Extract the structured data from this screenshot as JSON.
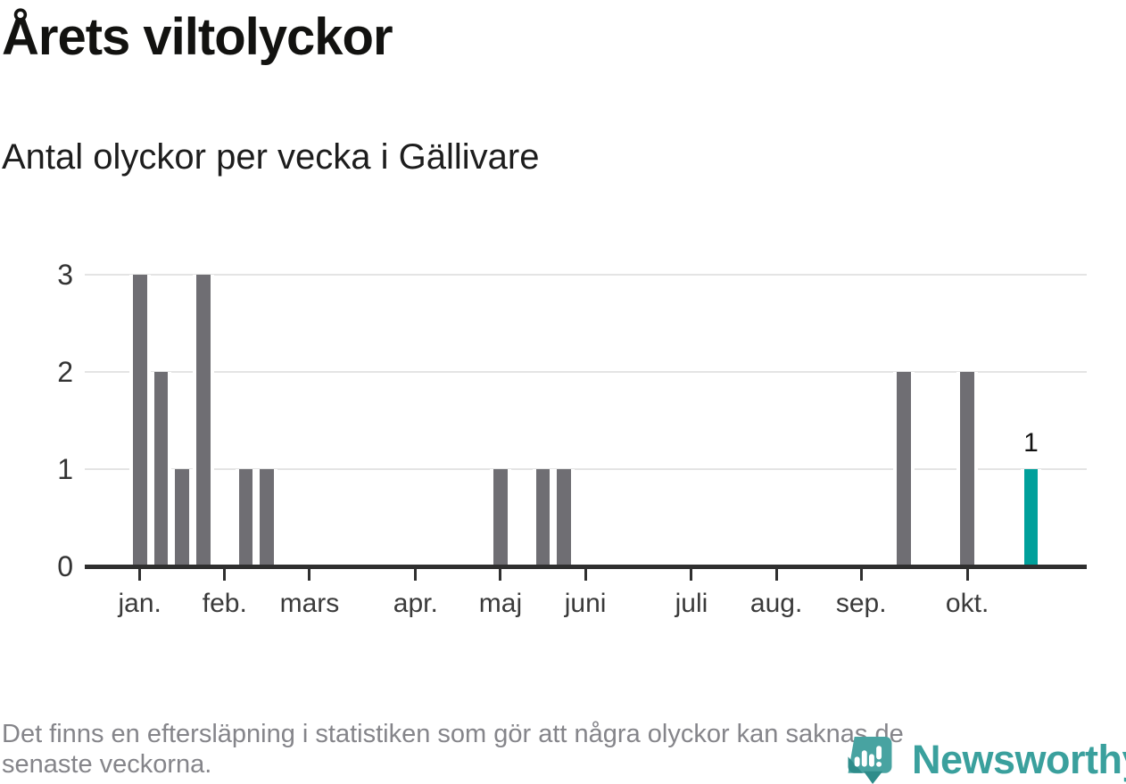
{
  "header": {
    "title": "Årets viltolyckor",
    "subtitle": "Antal olyckor per vecka i Gällivare"
  },
  "chart_data": {
    "type": "bar",
    "title": "Årets viltolyckor",
    "subtitle": "Antal olyckor per vecka i Gällivare",
    "xlabel": "",
    "ylabel": "Antal olyckor per vecka",
    "x_unit": "week-of-year",
    "start_week": 1,
    "values": [
      3,
      2,
      1,
      3,
      0,
      1,
      1,
      0,
      0,
      0,
      0,
      0,
      0,
      0,
      0,
      0,
      0,
      1,
      0,
      1,
      1,
      0,
      0,
      0,
      0,
      0,
      0,
      0,
      0,
      0,
      0,
      0,
      0,
      0,
      0,
      0,
      2,
      0,
      0,
      2,
      0,
      0,
      1
    ],
    "highlight_last_bar": true,
    "last_bar_value_label": "1",
    "ylim": [
      0,
      3
    ],
    "yticks": [
      0,
      1,
      2,
      3
    ],
    "grid": true,
    "legend": null,
    "month_ticks": [
      {
        "week": 1,
        "label": "jan."
      },
      {
        "week": 5,
        "label": "feb."
      },
      {
        "week": 9,
        "label": "mars"
      },
      {
        "week": 14,
        "label": "apr."
      },
      {
        "week": 18,
        "label": "maj"
      },
      {
        "week": 22,
        "label": "juni"
      },
      {
        "week": 27,
        "label": "juli"
      },
      {
        "week": 31,
        "label": "aug."
      },
      {
        "week": 35,
        "label": "sep."
      },
      {
        "week": 40,
        "label": "okt."
      }
    ],
    "colors": {
      "bar": "#6f6e73",
      "highlight": "#00a09b",
      "grid": "#e4e4e4",
      "axis": "#2f2f2f",
      "tick_label": "#3a3a3a"
    }
  },
  "footer": {
    "note_lines": [
      "Det finns en eftersläpning i statistiken som gör att några olyckor kan saknas de",
      "senaste veckorna."
    ]
  },
  "logo": {
    "brand": "Newsworthy",
    "color": "#3aa09d"
  }
}
